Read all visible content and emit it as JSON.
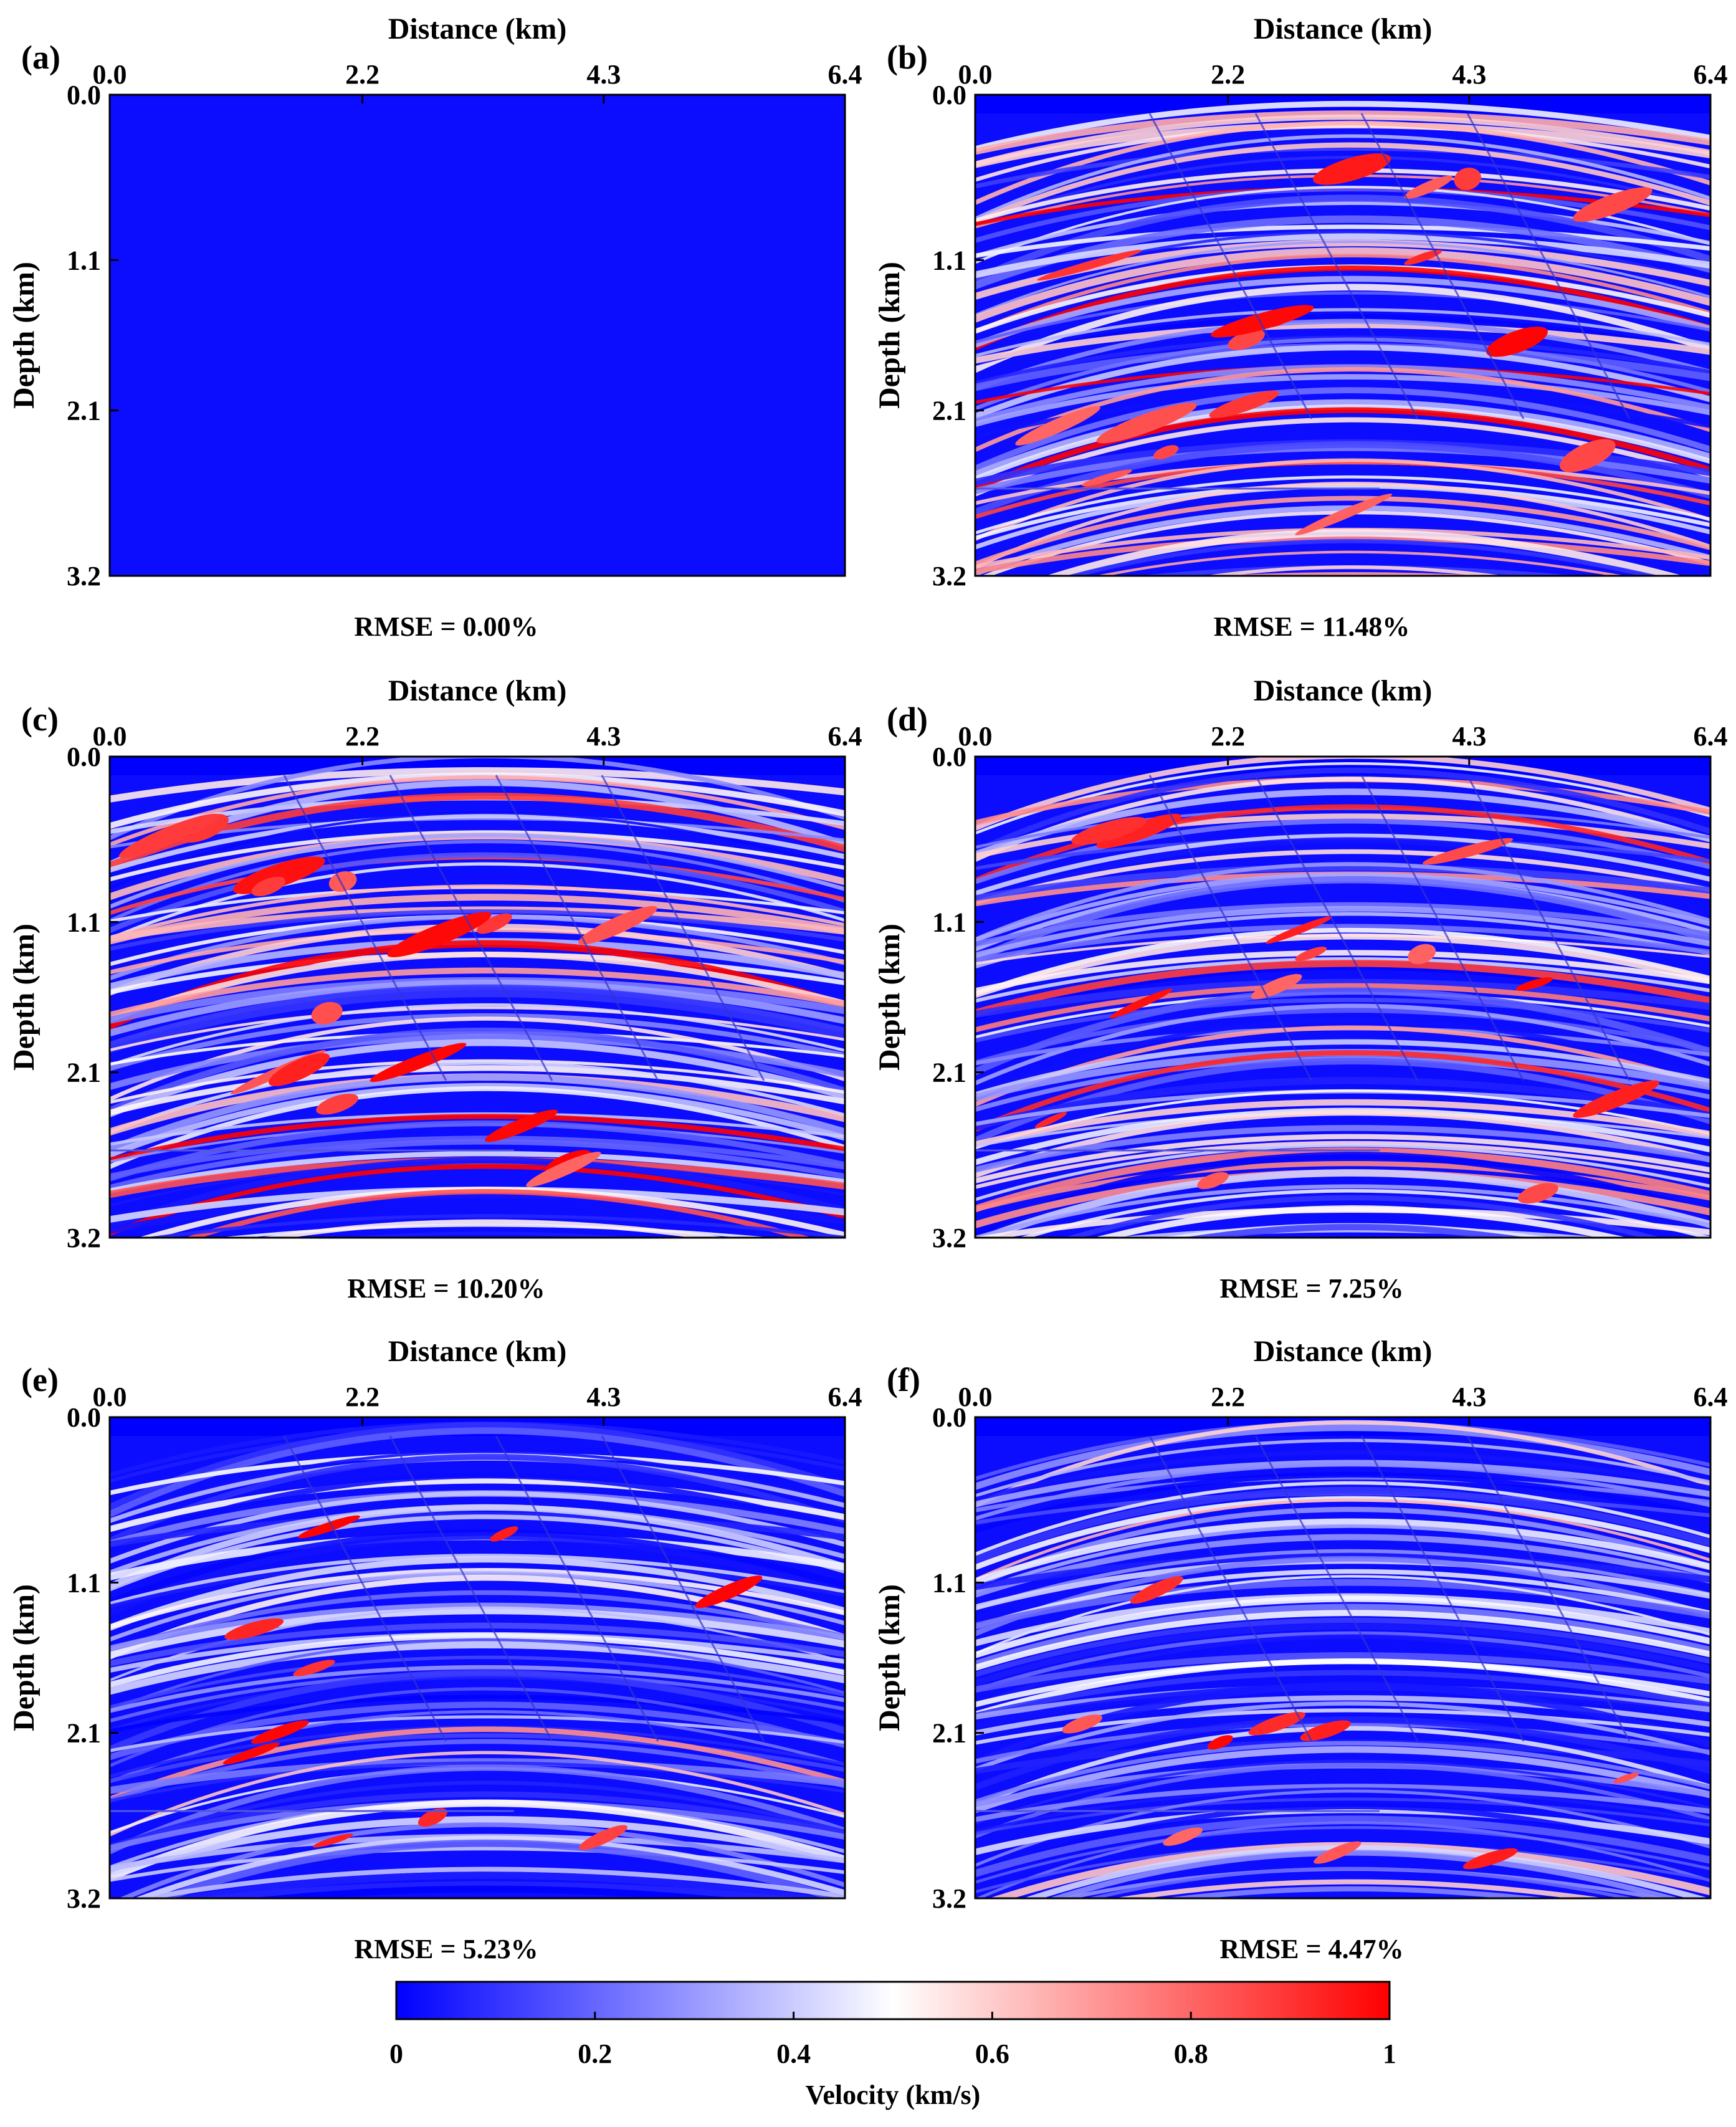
{
  "chart_data": {
    "type": "heatmap",
    "layout": "3 rows x 2 columns",
    "panels": [
      {
        "letter": "(a)",
        "rmse": "RMSE = 0.00%",
        "pattern": "uniform-zero"
      },
      {
        "letter": "(b)",
        "rmse": "RMSE = 11.48%",
        "pattern": "layered-faulted",
        "intensity": 1.0
      },
      {
        "letter": "(c)",
        "rmse": "RMSE = 10.20%",
        "pattern": "layered-faulted",
        "intensity": 0.93
      },
      {
        "letter": "(d)",
        "rmse": "RMSE = 7.25%",
        "pattern": "layered-faulted",
        "intensity": 0.7
      },
      {
        "letter": "(e)",
        "rmse": "RMSE = 5.23%",
        "pattern": "layered-faulted",
        "intensity": 0.5
      },
      {
        "letter": "(f)",
        "rmse": "RMSE = 4.47%",
        "pattern": "layered-faulted",
        "intensity": 0.44
      }
    ],
    "xlabel": "Distance (km)",
    "ylabel": "Depth (km)",
    "x_ticks": [
      "0.0",
      "2.2",
      "4.3",
      "6.4"
    ],
    "x_tick_values": [
      0.0,
      2.2,
      4.3,
      6.4
    ],
    "y_ticks": [
      "0.0",
      "1.1",
      "2.1",
      "3.2"
    ],
    "y_tick_values": [
      0.0,
      1.1,
      2.1,
      3.2
    ],
    "xlim": [
      0,
      6.4
    ],
    "ylim": [
      0,
      3.2
    ],
    "y_inverted": true,
    "colorbar": {
      "label": "Velocity (km/s)",
      "ticks": [
        "0",
        "0.2",
        "0.4",
        "0.6",
        "0.8",
        "1"
      ],
      "tick_values": [
        0,
        0.2,
        0.4,
        0.6,
        0.8,
        1
      ],
      "range": [
        0,
        1
      ],
      "colormap": [
        "#0000ff",
        "#ffffff",
        "#ff0000"
      ]
    }
  }
}
